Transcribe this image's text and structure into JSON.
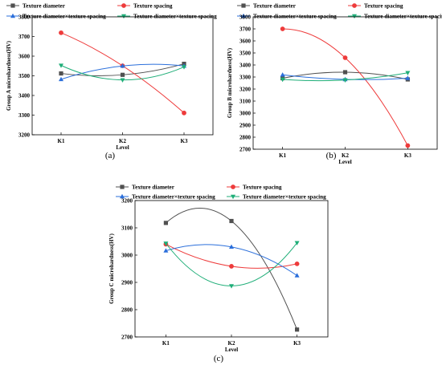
{
  "chart_data": [
    {
      "type": "line",
      "panel_label": "(a)",
      "categories": [
        "K1",
        "K2",
        "K3"
      ],
      "xlabel": "Level",
      "ylabel": "Group A microhardness(HV)",
      "ylim": [
        3200,
        3800
      ],
      "yticks": [
        "3200",
        "3300",
        "3400",
        "3500",
        "3600",
        "3700",
        "3800"
      ],
      "grid": false,
      "legend": "top",
      "series": [
        {
          "name": "Texture diameter",
          "values": [
            3512,
            3505,
            3561
          ],
          "color": "#505050",
          "marker": "square"
        },
        {
          "name": "Texture spacing",
          "values": [
            3719,
            3551,
            3311
          ],
          "color": "#ee3b3b",
          "marker": "circle"
        },
        {
          "name": "Texture diameter×texture spacing",
          "values": [
            3482,
            3550,
            3550
          ],
          "color": "#2b6fdb",
          "marker": "triangle-up"
        },
        {
          "name": "Texture diameter×texture spacing",
          "values": [
            3553,
            3479,
            3545
          ],
          "color": "#1fae78",
          "marker": "triangle-down"
        }
      ]
    },
    {
      "type": "line",
      "panel_label": "(b)",
      "categories": [
        "K1",
        "K2",
        "K3"
      ],
      "xlabel": "Level",
      "ylabel": "Group B microhardness(HV)",
      "ylim": [
        2700,
        3800
      ],
      "yticks": [
        "2700",
        "2800",
        "2900",
        "3000",
        "3100",
        "3200",
        "3300",
        "3400",
        "3500",
        "3600",
        "3700",
        "3800"
      ],
      "grid": false,
      "legend": "top",
      "series": [
        {
          "name": "Texture diameter",
          "values": [
            3290,
            3340,
            3280
          ],
          "color": "#505050",
          "marker": "square"
        },
        {
          "name": "Texture spacing",
          "values": [
            3700,
            3460,
            2730
          ],
          "color": "#ee3b3b",
          "marker": "circle"
        },
        {
          "name": "Texture diameter×texture spacing",
          "values": [
            3318,
            3280,
            3290
          ],
          "color": "#2b6fdb",
          "marker": "triangle-up"
        },
        {
          "name": "Texture diameter×texture spacing",
          "values": [
            3280,
            3275,
            3335
          ],
          "color": "#1fae78",
          "marker": "triangle-down"
        }
      ]
    },
    {
      "type": "line",
      "panel_label": "(c)",
      "categories": [
        "K1",
        "K2",
        "K3"
      ],
      "xlabel": "Level",
      "ylabel": "Group C microhardness(HV)",
      "ylim": [
        2700,
        3200
      ],
      "yticks": [
        "2700",
        "2800",
        "2900",
        "3000",
        "3100",
        "3200"
      ],
      "grid": false,
      "legend": "top",
      "series": [
        {
          "name": "Texture diameter",
          "values": [
            3118,
            3125,
            2727
          ],
          "color": "#505050",
          "marker": "square"
        },
        {
          "name": "Texture spacing",
          "values": [
            3040,
            2959,
            2968
          ],
          "color": "#ee3b3b",
          "marker": "circle"
        },
        {
          "name": "Texture diameter×texture spacing",
          "values": [
            3016,
            3030,
            2925
          ],
          "color": "#2b6fdb",
          "marker": "triangle-up"
        },
        {
          "name": "Texture diameter×texture spacing",
          "values": [
            3043,
            2887,
            3045
          ],
          "color": "#1fae78",
          "marker": "triangle-down"
        }
      ]
    }
  ]
}
